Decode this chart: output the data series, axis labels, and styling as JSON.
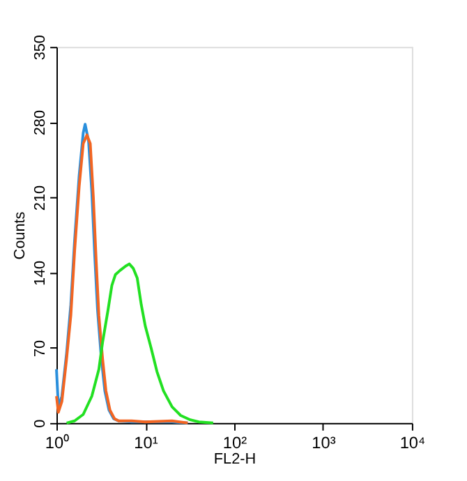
{
  "chart_data": {
    "type": "line",
    "xlabel": "FL2-H",
    "ylabel": "Counts",
    "log": "x",
    "xlim": [
      1,
      10000
    ],
    "xticks": [
      {
        "value": 1,
        "label": "10⁰"
      },
      {
        "value": 10,
        "label": "10¹"
      },
      {
        "value": 100,
        "label": "10²"
      },
      {
        "value": 1000,
        "label": "10³"
      },
      {
        "value": 10000,
        "label": "10⁴"
      }
    ],
    "ylim": [
      0,
      350
    ],
    "yticks": [
      0,
      70,
      140,
      210,
      280,
      350
    ],
    "series": [
      {
        "color": "#2a8fdc",
        "x": [
          1.0,
          1.05,
          1.15,
          1.3,
          1.45,
          1.6,
          1.8,
          2.0,
          2.1,
          2.3,
          2.5,
          2.7,
          2.9,
          3.2,
          3.5,
          3.9,
          4.4,
          5,
          7,
          10,
          20,
          30
        ],
        "values": [
          50,
          15,
          25,
          65,
          110,
          170,
          230,
          270,
          278,
          262,
          215,
          155,
          105,
          60,
          30,
          12,
          4,
          2,
          1,
          1,
          1,
          0
        ]
      },
      {
        "color": "#f26522",
        "x": [
          1.0,
          1.05,
          1.15,
          1.3,
          1.45,
          1.6,
          1.8,
          2.0,
          2.2,
          2.4,
          2.6,
          2.8,
          3.0,
          3.3,
          3.6,
          4.0,
          4.5,
          5,
          7,
          10,
          20,
          30
        ],
        "values": [
          25,
          10,
          20,
          60,
          100,
          160,
          220,
          260,
          268,
          260,
          210,
          150,
          100,
          60,
          30,
          12,
          4,
          2,
          2,
          1,
          2,
          0
        ]
      },
      {
        "color": "#22e022",
        "x": [
          1.3,
          1.6,
          2.0,
          2.5,
          3.0,
          3.3,
          3.8,
          4.2,
          4.6,
          5.2,
          6.0,
          6.6,
          7.3,
          8.1,
          9,
          10,
          11.6,
          13.5,
          16,
          20,
          25,
          32,
          40,
          58
        ],
        "values": [
          0,
          2,
          8,
          25,
          50,
          75,
          105,
          128,
          138,
          142,
          146,
          148,
          144,
          135,
          110,
          90,
          70,
          48,
          30,
          15,
          7,
          3,
          1,
          0
        ]
      }
    ]
  }
}
